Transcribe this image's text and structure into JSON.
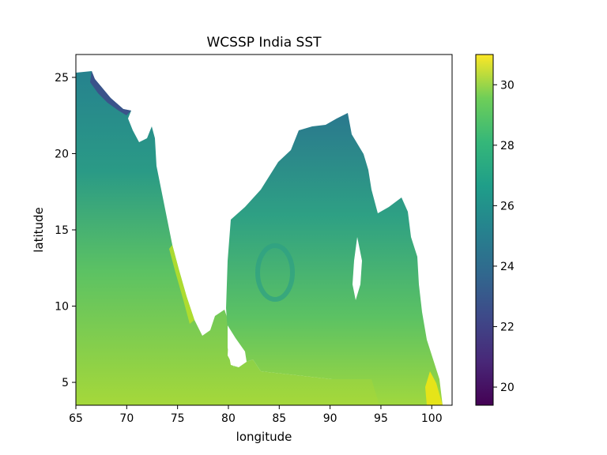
{
  "chart_data": {
    "type": "heatmap",
    "title": "WCSSP India SST",
    "xlabel": "longitude",
    "ylabel": "latitude",
    "xlim": [
      65,
      102
    ],
    "ylim": [
      3.5,
      26.5
    ],
    "x_ticks": [
      65,
      70,
      75,
      80,
      85,
      90,
      95,
      100
    ],
    "y_ticks": [
      5,
      10,
      15,
      20,
      25
    ],
    "colorbar": {
      "colormap": "viridis",
      "range": [
        19.4,
        31.0
      ],
      "ticks": [
        20,
        22,
        24,
        26,
        28,
        30
      ]
    },
    "land_color": "#ffffff",
    "grid": false
  }
}
